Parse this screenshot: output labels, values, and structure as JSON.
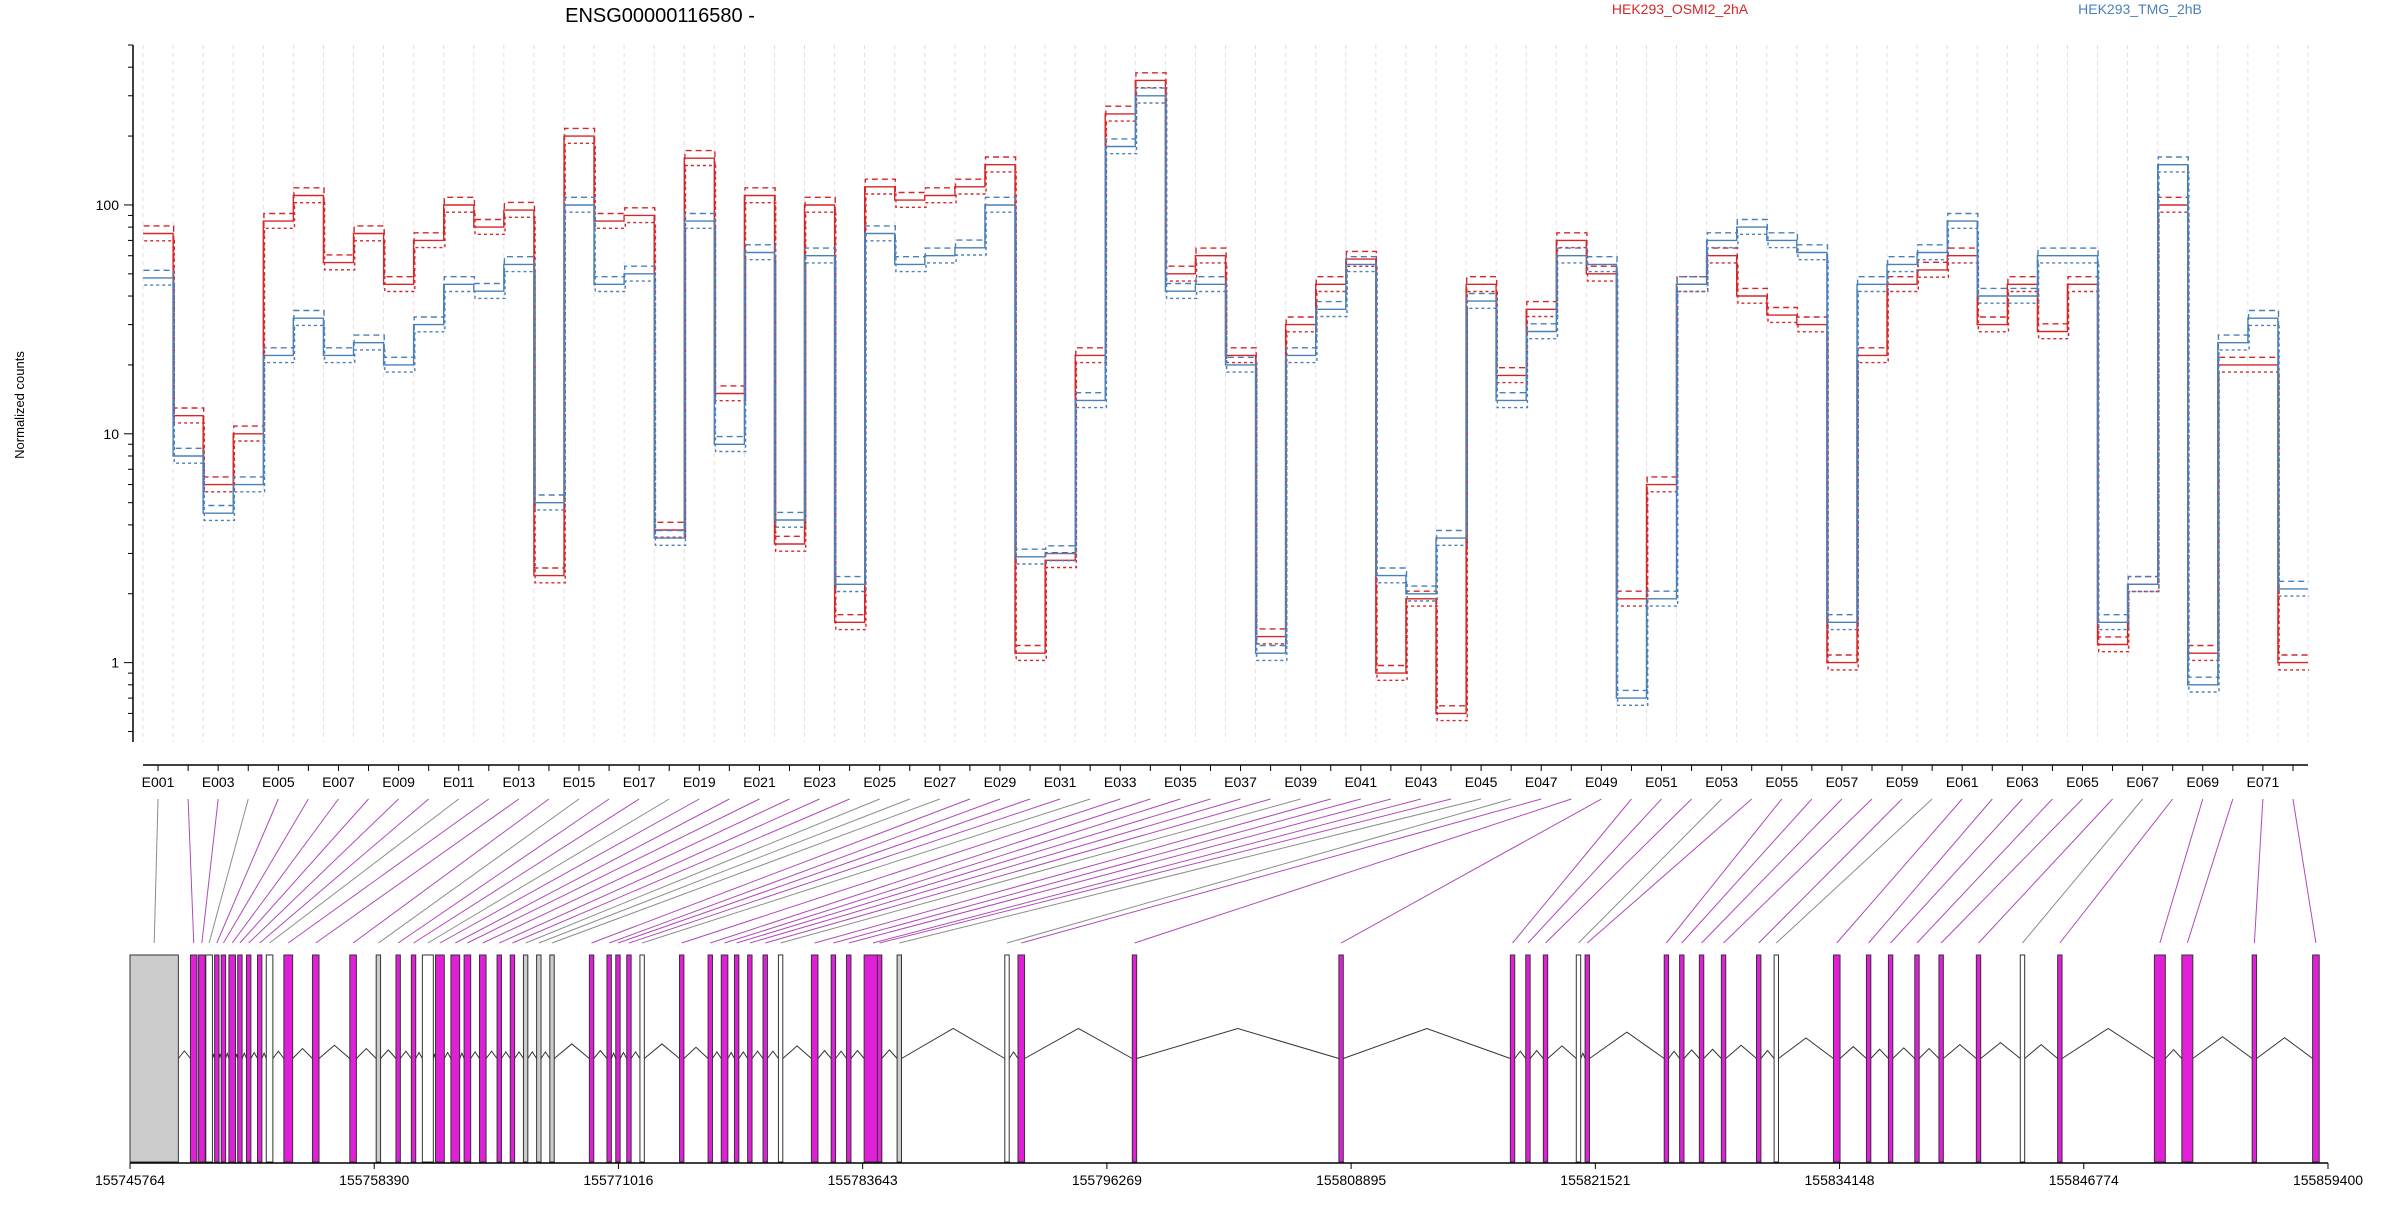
{
  "chart_data": [
    {
      "type": "line",
      "title": "ENSG00000116580 -",
      "ylabel": "Normalized counts",
      "xlabel": "",
      "y_scale": "log",
      "ylim": [
        0.45,
        500
      ],
      "yticks": [
        1,
        10,
        100
      ],
      "ytick_labels": [
        "1",
        "10",
        "100"
      ],
      "grid": "vertical dashed lines at exon boundaries",
      "legend_placement": "top-right",
      "categories": [
        "E001",
        "E002",
        "E003",
        "E004",
        "E005",
        "E006",
        "E007",
        "E008",
        "E009",
        "E010",
        "E011",
        "E012",
        "E013",
        "E014",
        "E015",
        "E016",
        "E017",
        "E018",
        "E019",
        "E020",
        "E021",
        "E022",
        "E023",
        "E024",
        "E025",
        "E026",
        "E027",
        "E028",
        "E029",
        "E030",
        "E031",
        "E032",
        "E033",
        "E034",
        "E035",
        "E036",
        "E037",
        "E038",
        "E039",
        "E040",
        "E041",
        "E042",
        "E043",
        "E044",
        "E045",
        "E046",
        "E047",
        "E048",
        "E049",
        "E050",
        "E051",
        "E052",
        "E053",
        "E054",
        "E055",
        "E056",
        "E057",
        "E058",
        "E059",
        "E060",
        "E061",
        "E062",
        "E063",
        "E064",
        "E065",
        "E066",
        "E067",
        "E068",
        "E069",
        "E070",
        "E071",
        "E072"
      ],
      "xtick_labels": [
        "E001",
        "E003",
        "E005",
        "E007",
        "E009",
        "E011",
        "E013",
        "E015",
        "E017",
        "E019",
        "E021",
        "E023",
        "E025",
        "E027",
        "E029",
        "E031",
        "E033",
        "E035",
        "E037",
        "E039",
        "E041",
        "E043",
        "E045",
        "E047",
        "E049",
        "E051",
        "E053",
        "E055",
        "E057",
        "E059",
        "E061",
        "E063",
        "E065",
        "E067",
        "E069",
        "E071"
      ],
      "series": [
        {
          "name": "HEK293_OSMI2_2hA",
          "color": "#d62728",
          "values": [
            75,
            12,
            6,
            10,
            85,
            110,
            56,
            75,
            45,
            70,
            100,
            80,
            95,
            2.4,
            200,
            85,
            90,
            3.8,
            160,
            15,
            110,
            3.3,
            100,
            1.5,
            120,
            105,
            110,
            120,
            150,
            1.1,
            2.8,
            22,
            250,
            350,
            50,
            60,
            22,
            1.3,
            30,
            45,
            58,
            0.9,
            1.9,
            0.6,
            45,
            18,
            35,
            70,
            50,
            1.9,
            6,
            45,
            60,
            40,
            33,
            30,
            1.0,
            22,
            45,
            52,
            60,
            30,
            45,
            28,
            45,
            1.2,
            2.2,
            100,
            1.1,
            20,
            20,
            1.0
          ]
        },
        {
          "name": "HEK293_TMG_2hB",
          "color": "#4a80b8",
          "values": [
            48,
            8,
            4.5,
            6,
            22,
            32,
            22,
            25,
            20,
            30,
            45,
            42,
            55,
            5.0,
            100,
            45,
            50,
            3.5,
            85,
            9,
            62,
            4.2,
            60,
            2.2,
            75,
            55,
            60,
            65,
            100,
            2.9,
            3.0,
            14,
            180,
            300,
            42,
            45,
            20,
            1.1,
            22,
            35,
            55,
            2.4,
            2.0,
            3.5,
            38,
            14,
            28,
            60,
            55,
            0.7,
            1.9,
            45,
            70,
            80,
            70,
            62,
            1.5,
            45,
            55,
            62,
            85,
            40,
            40,
            60,
            60,
            1.5,
            2.2,
            150,
            0.8,
            25,
            32,
            2.1
          ]
        }
      ]
    },
    {
      "type": "gene_model",
      "x_start": 155745764,
      "x_end": 155859400,
      "xtick_labels": [
        "155745764",
        "155758390",
        "155771016",
        "155783643",
        "155796269",
        "155808895",
        "155821521",
        "155834148",
        "155846774",
        "155859400"
      ]
    }
  ]
}
